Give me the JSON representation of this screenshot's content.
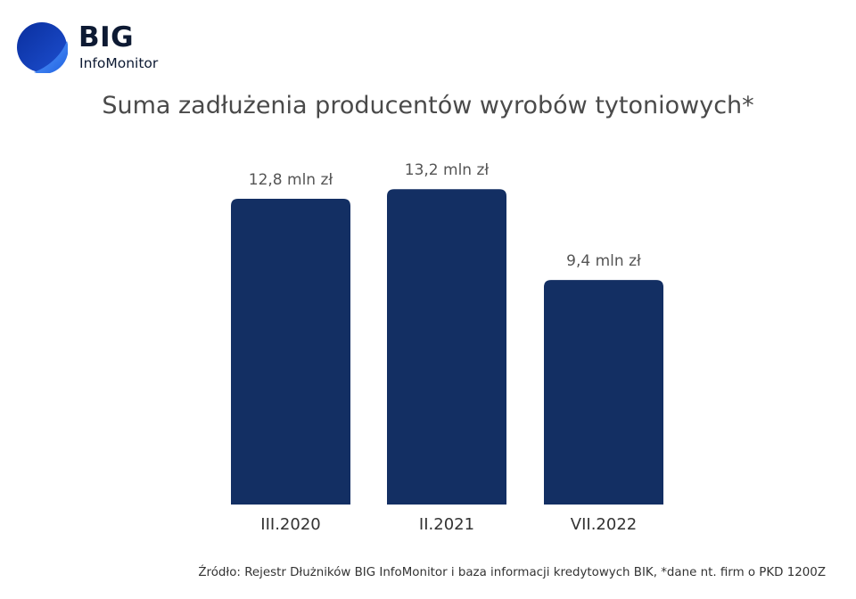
{
  "logo": {
    "name": "BIG",
    "subname": "InfoMonitor"
  },
  "colors": {
    "bar": "#132f63",
    "logo_dark": "#0b2a8a",
    "logo_light": "#2f6ee8",
    "text": "#4a4a4a"
  },
  "chart_data": {
    "type": "bar",
    "title": "Suma zadłużenia producentów wyrobów tytoniowych*",
    "categories": [
      "III.2020",
      "II.2021",
      "VII.2022"
    ],
    "values": [
      12.8,
      13.2,
      9.4
    ],
    "data_labels": [
      "12,8 mln zł",
      "13,2 mln zł",
      "9,4 mln zł"
    ],
    "xlabel": "",
    "ylabel": "",
    "ylim": [
      0,
      15
    ],
    "grid": false,
    "legend": "none"
  },
  "source": "Źródło: Rejestr Dłużników BIG InfoMonitor i baza informacji kredytowych BIK, *dane nt. firm o PKD 1200Z"
}
